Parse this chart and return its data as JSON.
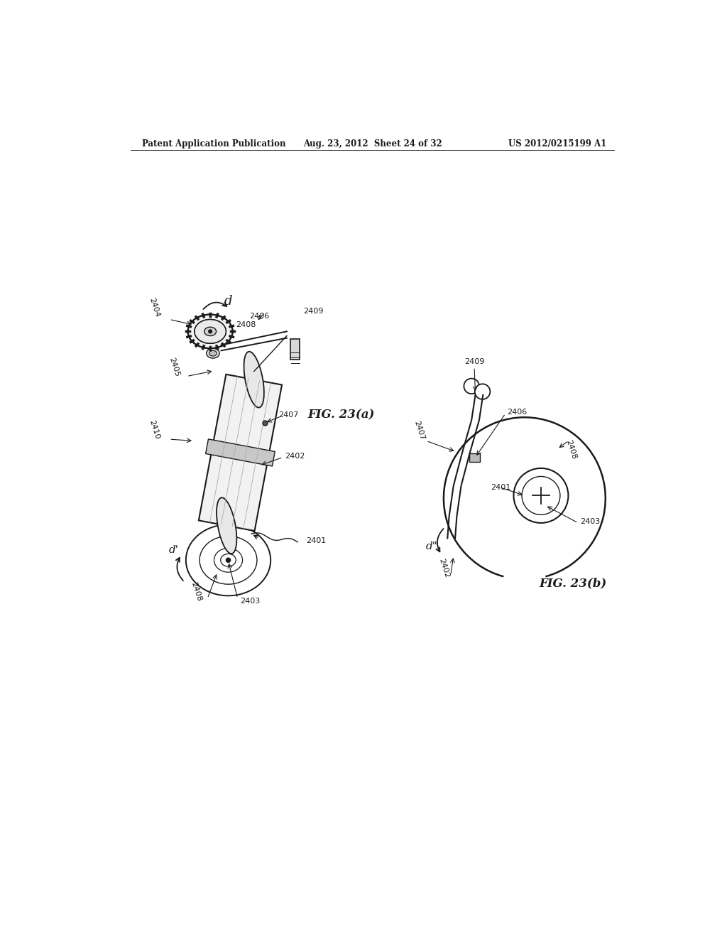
{
  "title_left": "Patent Application Publication",
  "title_center": "Aug. 23, 2012  Sheet 24 of 32",
  "title_right": "US 2012/0215199 A1",
  "fig_a_label": "FIG. 23(a)",
  "fig_b_label": "FIG. 23(b)",
  "background_color": "#ffffff",
  "line_color": "#1a1a1a",
  "text_color": "#1a1a1a"
}
